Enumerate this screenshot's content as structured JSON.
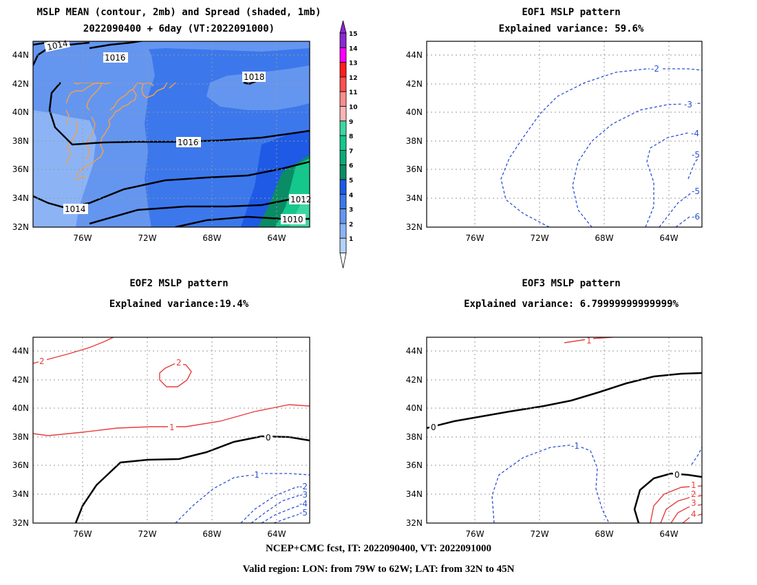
{
  "panels": [
    {
      "title1": "MSLP MEAN (contour, 2mb) and Spread (shaded, 1mb)",
      "title2": "2022090400 + 6day (VT:2022091000)"
    },
    {
      "title1": "EOF1 MSLP pattern",
      "title2": "Explained variance: 59.6%"
    },
    {
      "title1": "EOF2 MSLP pattern",
      "title2": "Explained variance:19.4%"
    },
    {
      "title1": "EOF3 MSLP pattern",
      "title2": "Explained variance: 6.79999999999999%"
    }
  ],
  "axes": {
    "lat_ticks": [
      "44N",
      "42N",
      "40N",
      "38N",
      "36N",
      "34N",
      "32N"
    ],
    "lon_ticks": [
      "76W",
      "72W",
      "68W",
      "64W"
    ]
  },
  "colorbar": {
    "labels": [
      "1",
      "2",
      "3",
      "4",
      "5",
      "6",
      "7",
      "8",
      "9",
      "10",
      "11",
      "12",
      "13",
      "14",
      "15"
    ],
    "colors": [
      "#b4d2fa",
      "#8cb4f5",
      "#6496f0",
      "#3c78eb",
      "#1e5ae6",
      "#0a8c64",
      "#0aaa78",
      "#14c88c",
      "#3cd7a0",
      "#ffb4b4",
      "#ff8c8c",
      "#ff5050",
      "#ff1e1e",
      "#ff00ff",
      "#8c28d2"
    ]
  },
  "contour_labels": {
    "panel1": [
      "1014",
      "1016",
      "1018",
      "1016",
      "1014",
      "1012",
      "1010"
    ],
    "eof1": [
      "-2",
      "-3",
      "-4",
      "-5",
      "-5",
      "-6"
    ],
    "eof2": [
      "2",
      "2",
      "1",
      "0",
      "-1",
      "-2",
      "-3",
      "-4",
      "-5"
    ],
    "eof3": [
      "1",
      "0",
      "-1",
      "0",
      "1",
      "2",
      "3",
      "4"
    ]
  },
  "footer": {
    "line1": "NCEP+CMC fcst, IT: 2022090400, VT: 2022091000",
    "line2": "Valid region: LON: from 79W to 62W; LAT: from 32N to 45N"
  }
}
